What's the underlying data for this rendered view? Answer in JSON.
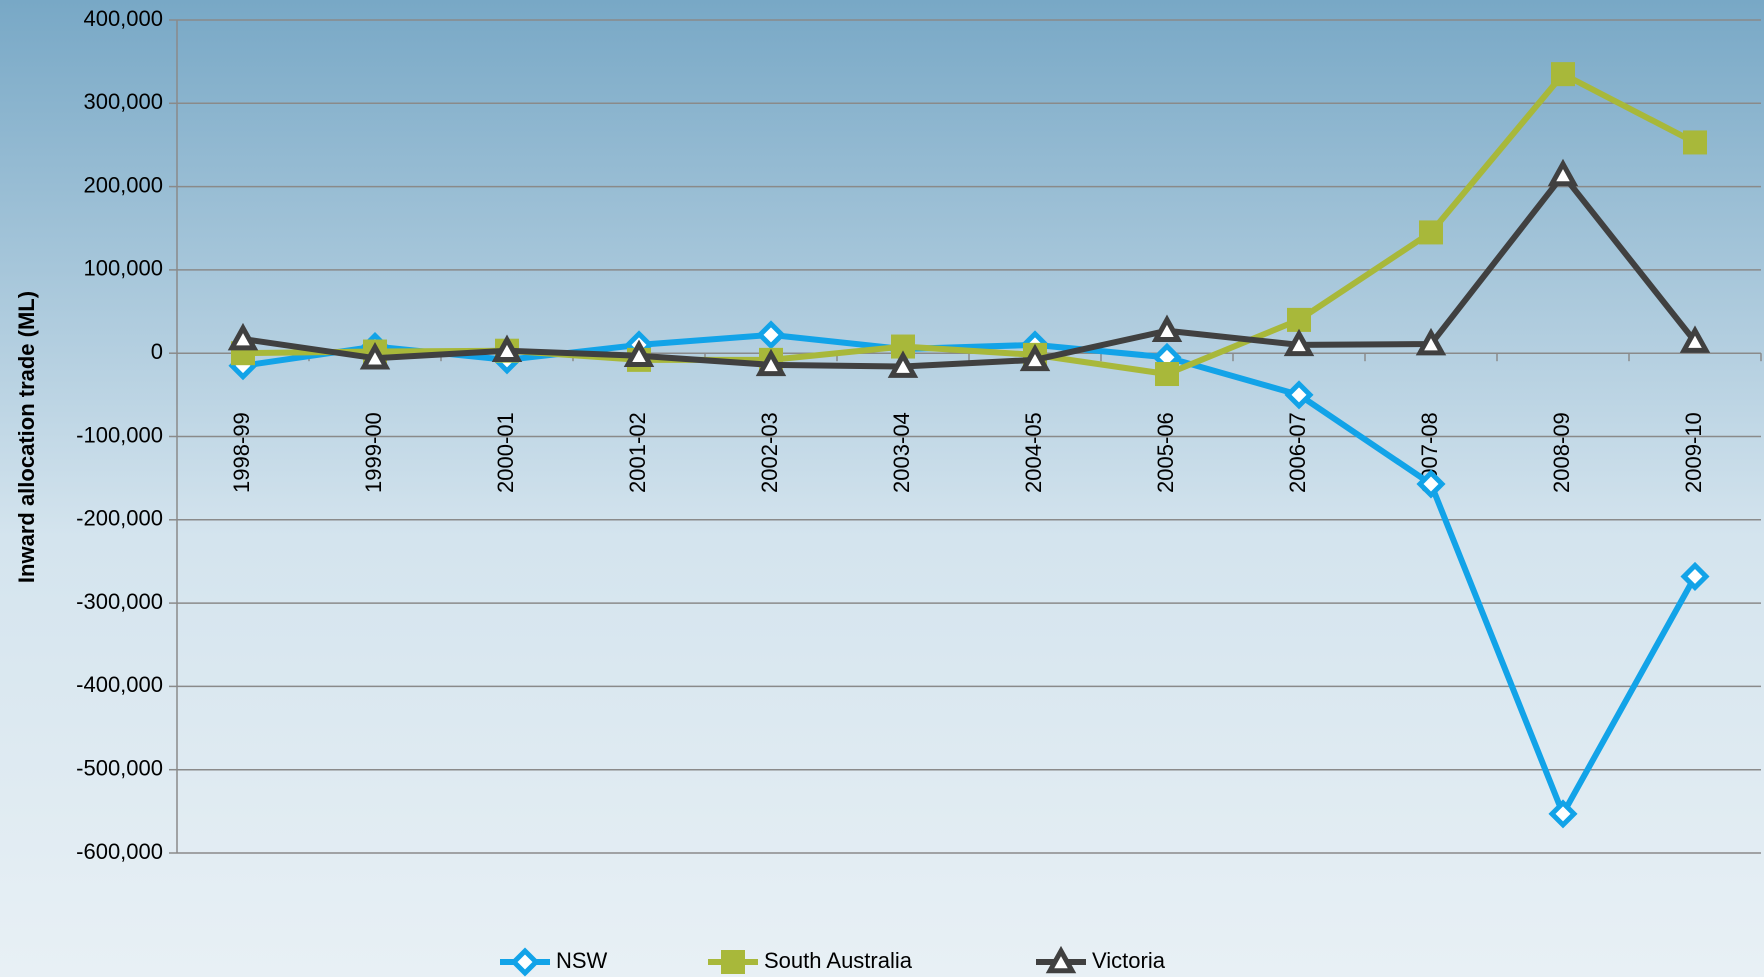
{
  "chart_data": {
    "type": "line",
    "y_label": "Inward allocation trade (ML)",
    "categories": [
      "1998-99",
      "1999-00",
      "2000-01",
      "2001-02",
      "2002-03",
      "2003-04",
      "2004-05",
      "2005-06",
      "2006-07",
      "2007-08",
      "2008-09",
      "2009-10"
    ],
    "series": [
      {
        "name": "NSW",
        "color": "#12a3e8",
        "marker": "diamond",
        "values": [
          -15000,
          8000,
          -8000,
          10000,
          22000,
          5000,
          10000,
          -5000,
          -50000,
          -157000,
          -553000,
          -268000
        ]
      },
      {
        "name": "South Australia",
        "color": "#a8b83a",
        "marker": "square",
        "values": [
          0,
          2000,
          3000,
          -8000,
          -8000,
          8000,
          -2000,
          -25000,
          40000,
          145000,
          335000,
          253000
        ]
      },
      {
        "name": "Victoria",
        "color": "#404040",
        "marker": "triangle",
        "values": [
          17000,
          -6000,
          3000,
          -3000,
          -14000,
          -16000,
          -8000,
          27000,
          10000,
          11000,
          214000,
          14000
        ]
      }
    ],
    "ylim": [
      -600000,
      400000
    ],
    "yticks": [
      {
        "value": -600000,
        "label": "-600,000"
      },
      {
        "value": -500000,
        "label": "-500,000"
      },
      {
        "value": -400000,
        "label": "-400,000"
      },
      {
        "value": -300000,
        "label": "-300,000"
      },
      {
        "value": -200000,
        "label": "-200,000"
      },
      {
        "value": -100000,
        "label": "-100,000"
      },
      0,
      {
        "value": 100000,
        "label": "100,000"
      },
      {
        "value": 200000,
        "label": "200,000"
      },
      {
        "value": 300000,
        "label": "300,000"
      },
      {
        "value": 400000,
        "label": "400,000"
      }
    ],
    "grid": true,
    "legend": "bottom"
  }
}
